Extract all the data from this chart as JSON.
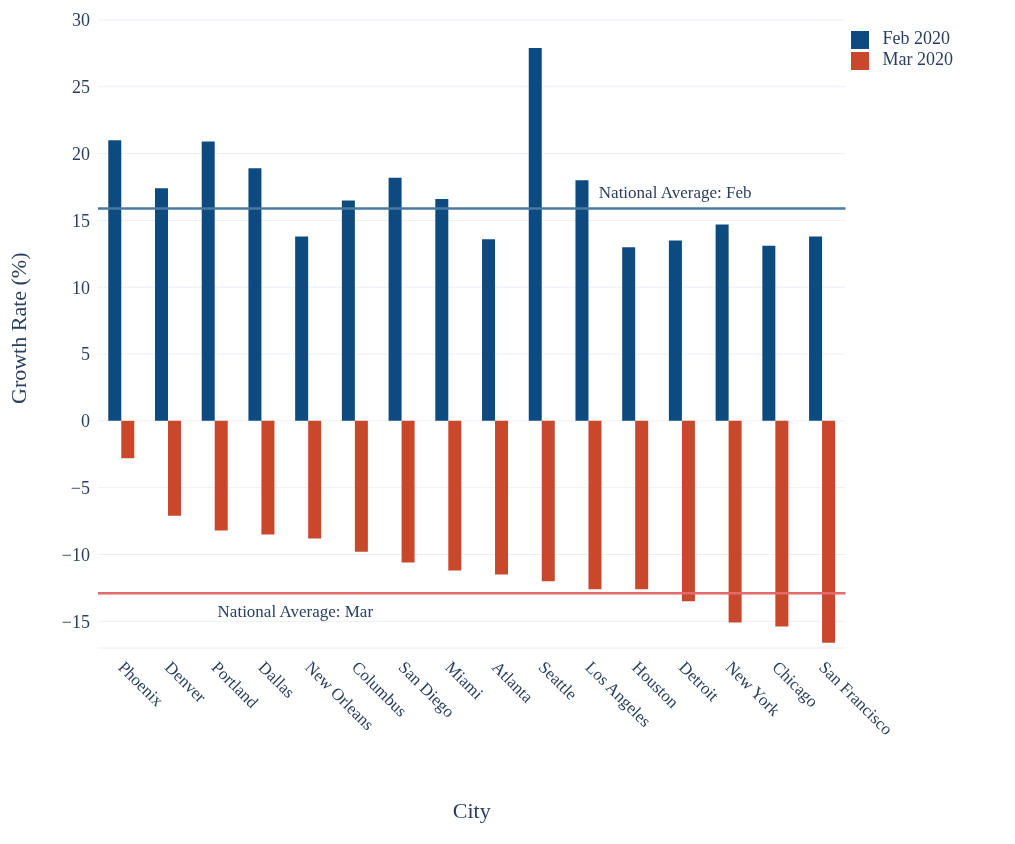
{
  "chart_data": {
    "type": "bar",
    "xlabel": "City",
    "ylabel": "Growth Rate (%)",
    "categories": [
      "Phoenix",
      "Denver",
      "Portland",
      "Dallas",
      "New Orleans",
      "Columbus",
      "San Diego",
      "Miami",
      "Atlanta",
      "Seattle",
      "Los Angeles",
      "Houston",
      "Detroit",
      "New York",
      "Chicago",
      "San Francisco"
    ],
    "series": [
      {
        "name": "Feb 2020",
        "color": "#0d4a80",
        "values": [
          21.0,
          17.4,
          20.9,
          18.9,
          13.8,
          16.5,
          18.2,
          16.6,
          13.6,
          27.9,
          18.0,
          13.0,
          13.5,
          14.7,
          13.1,
          13.8
        ]
      },
      {
        "name": "Mar 2020",
        "color": "#c9482b",
        "values": [
          -2.8,
          -7.1,
          -8.2,
          -8.5,
          -8.8,
          -9.8,
          -10.6,
          -11.2,
          -11.5,
          -12.0,
          -12.6,
          -12.6,
          -13.5,
          -15.1,
          -15.4,
          -16.6
        ]
      }
    ],
    "ylim": [
      -17,
      30
    ],
    "yticks": [
      -15,
      -10,
      -5,
      0,
      5,
      10,
      15,
      20,
      25,
      30
    ],
    "grid": "y",
    "legend": "top right",
    "ref_lines": [
      {
        "axis": "y",
        "value": 15.9,
        "label": "National Average: Feb",
        "color": "#4a7aa0"
      },
      {
        "axis": "y",
        "value": -12.9,
        "label": "National Average: Mar",
        "color": "#e26a6a"
      }
    ]
  }
}
